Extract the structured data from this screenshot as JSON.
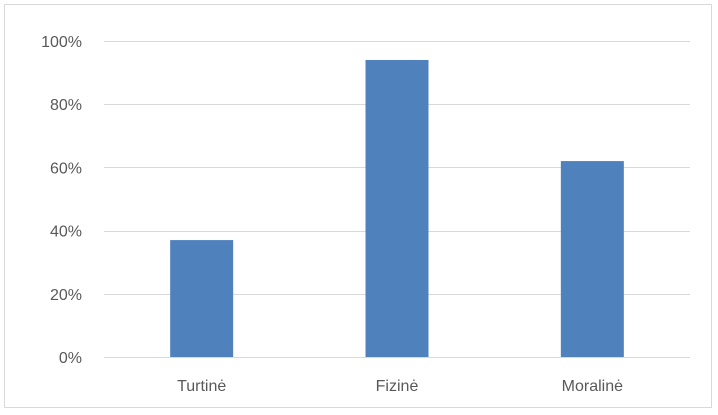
{
  "chart_data": {
    "type": "bar",
    "categories": [
      "Turtinė",
      "Fizinė",
      "Moralinė"
    ],
    "values": [
      37,
      94,
      62
    ],
    "ylim": [
      0,
      100
    ],
    "yticks": [
      0,
      20,
      40,
      60,
      80,
      100
    ],
    "ytick_labels": [
      "0%",
      "20%",
      "40%",
      "60%",
      "80%",
      "100%"
    ],
    "grid": true,
    "legend": "none",
    "bar_color": "#4f81bd",
    "gridline_color": "#d9d9d9"
  }
}
